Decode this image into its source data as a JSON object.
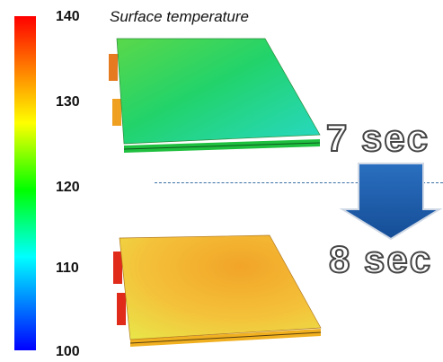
{
  "colorbar": {
    "ticks": [
      "140",
      "130",
      "120",
      "110",
      "100"
    ]
  },
  "title": "Surface temperature",
  "times": {
    "first": "7 sec",
    "second": "8 sec"
  },
  "colors": {
    "arrow": "#1e5aa6",
    "divider": "#3a6ea5"
  }
}
